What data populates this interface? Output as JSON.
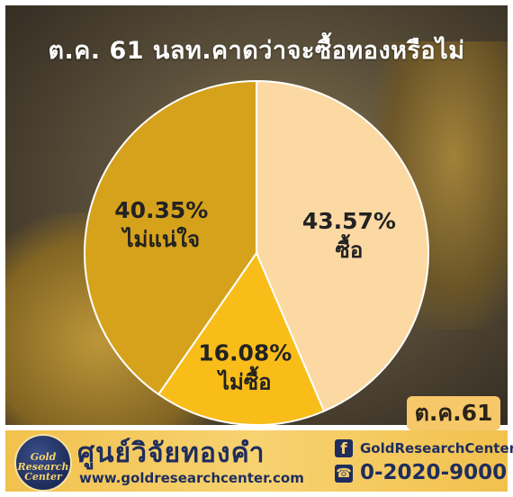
{
  "header": {
    "title": "ต.ค. 61 นลท.คาดว่าจะซื้อทองหรือไม่"
  },
  "chart_data": {
    "type": "pie",
    "title": "ต.ค. 61 นลท.คาดว่าจะซื้อทองหรือไม่",
    "slices": [
      {
        "label": "ซื้อ",
        "value": 43.57,
        "value_label": "43.57%",
        "color": "#fcd9a3"
      },
      {
        "label": "ไม่ซื้อ",
        "value": 16.08,
        "value_label": "16.08%",
        "color": "#f9bd1a"
      },
      {
        "label": "ไม่แน่ใจ",
        "value": 40.35,
        "value_label": "40.35%",
        "color": "#d6a21c"
      }
    ]
  },
  "badge": {
    "date": "ต.ค.61"
  },
  "footer": {
    "logo_text": "Gold Research Center",
    "brand_th": "ศูนย์วิจัยทองคำ",
    "url": "www.goldresearchcenter.com",
    "facebook_icon": "f",
    "facebook": "GoldResearchCenter",
    "phone_icon": "☎",
    "phone": "0-2020-9000"
  }
}
